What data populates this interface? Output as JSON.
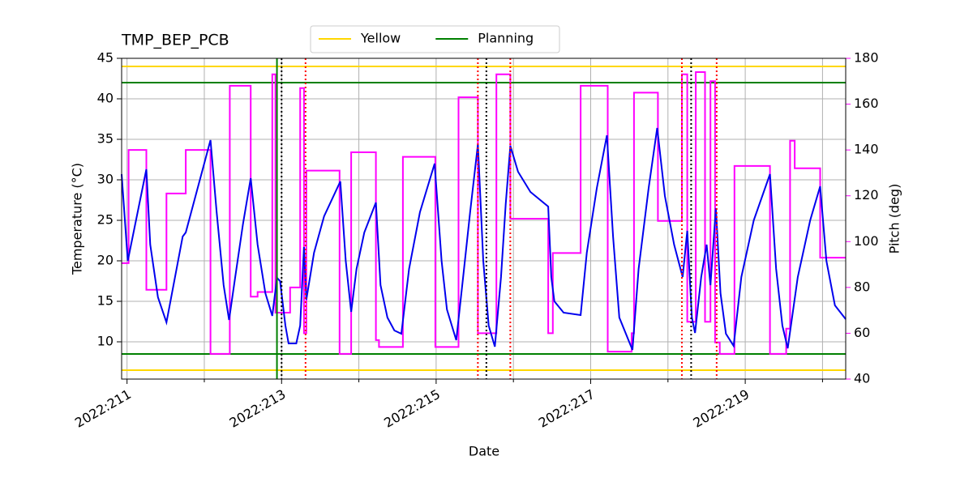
{
  "chart_data": {
    "type": "line",
    "title": "TMP_BEP_PCB",
    "xlabel": "Date",
    "ylabel": "Temperature (°C)",
    "y2label": "Pitch (deg)",
    "y2color": "#ff00ff",
    "xlim": [
      210.93,
      220.3
    ],
    "ylim": [
      5.4,
      45
    ],
    "y2lim": [
      40,
      180
    ],
    "xticks": [
      {
        "value": 211,
        "label": "2022:211"
      },
      {
        "value": 213,
        "label": "2022:213"
      },
      {
        "value": 215,
        "label": "2022:215"
      },
      {
        "value": 217,
        "label": "2022:217"
      },
      {
        "value": 219,
        "label": "2022:219"
      }
    ],
    "x_minor_ticks": [
      212,
      214,
      216,
      218,
      220
    ],
    "yticks": [
      10,
      15,
      20,
      25,
      30,
      35,
      40,
      45
    ],
    "y2ticks": [
      40,
      60,
      80,
      100,
      120,
      140,
      160,
      180
    ],
    "grid": true,
    "limit_lines": [
      {
        "name": "Yellow",
        "color": "#ffd700",
        "values": [
          6.5,
          44
        ]
      },
      {
        "name": "Planning",
        "color": "#008000",
        "values": [
          8.5,
          42
        ]
      }
    ],
    "vlines": [
      {
        "color": "#008000",
        "dotted": false,
        "x": [
          212.94
        ]
      },
      {
        "color": "#000000",
        "dotted": true,
        "x": [
          213.0,
          215.65,
          218.3
        ]
      },
      {
        "color": "#ff0000",
        "dotted": true,
        "x": [
          213.31,
          215.54,
          215.96,
          218.18,
          218.63
        ]
      }
    ],
    "series": [
      {
        "color": "#0000ee",
        "x": [
          210.93,
          211.01,
          211.25,
          211.3,
          211.4,
          211.51,
          211.72,
          211.76,
          212.08,
          212.16,
          212.25,
          212.32,
          212.4,
          212.5,
          212.6,
          212.69,
          212.79,
          212.88,
          212.94,
          212.98,
          213.05,
          213.09,
          213.19,
          213.24,
          213.29,
          213.32,
          213.42,
          213.55,
          213.76,
          213.83,
          213.9,
          213.97,
          214.07,
          214.22,
          214.28,
          214.37,
          214.46,
          214.55,
          214.65,
          214.79,
          214.98,
          215.07,
          215.14,
          215.26,
          215.35,
          215.44,
          215.54,
          215.61,
          215.68,
          215.76,
          215.84,
          215.9,
          215.96,
          216.06,
          216.22,
          216.45,
          216.49,
          216.53,
          216.65,
          216.87,
          216.95,
          217.08,
          217.21,
          217.29,
          217.37,
          217.54,
          217.62,
          217.75,
          217.86,
          217.96,
          218.08,
          218.19,
          218.25,
          218.31,
          218.35,
          218.43,
          218.5,
          218.55,
          218.62,
          218.68,
          218.75,
          218.85,
          218.95,
          219.11,
          219.32,
          219.4,
          219.48,
          219.55,
          219.68,
          219.84,
          219.97,
          220.05,
          220.16,
          220.3
        ],
        "values": [
          30.7,
          20,
          31.3,
          22,
          15.5,
          12.4,
          23,
          23.5,
          34.9,
          26,
          17,
          12.7,
          18,
          24.5,
          30.2,
          22,
          16,
          13.2,
          17.9,
          17.5,
          12,
          9.8,
          9.8,
          12,
          21.7,
          15.2,
          21,
          25.5,
          29.8,
          20,
          13.7,
          19,
          23.5,
          27.2,
          17,
          13,
          11.4,
          11,
          19,
          26,
          32,
          20,
          14,
          10.2,
          18,
          26,
          34.4,
          20,
          12,
          9.4,
          18,
          27,
          34.2,
          31,
          28.5,
          26.7,
          18,
          15,
          13.6,
          13.3,
          21,
          29,
          35.5,
          23,
          13,
          9,
          19,
          29,
          36.4,
          28,
          22,
          18,
          23.7,
          13,
          11.1,
          18,
          22,
          17,
          26.5,
          16,
          11,
          9.5,
          18,
          25,
          30.7,
          19,
          12,
          9.2,
          18,
          25,
          29.2,
          20,
          14.5,
          12.8
        ]
      },
      {
        "color": "#ff00ff",
        "axis": "y2",
        "x": [
          210.93,
          211.02,
          211.02,
          211.25,
          211.25,
          211.51,
          211.51,
          211.76,
          211.76,
          212.08,
          212.08,
          212.33,
          212.33,
          212.6,
          212.6,
          212.69,
          212.69,
          212.88,
          212.88,
          212.92,
          212.92,
          213.11,
          213.11,
          213.24,
          213.24,
          213.29,
          213.29,
          213.32,
          213.32,
          213.75,
          213.75,
          213.9,
          213.9,
          214.22,
          214.22,
          214.26,
          214.26,
          214.57,
          214.57,
          214.99,
          214.99,
          215.29,
          215.29,
          215.54,
          215.54,
          215.78,
          215.78,
          215.96,
          215.96,
          216.45,
          216.45,
          216.51,
          216.51,
          216.87,
          216.87,
          217.22,
          217.22,
          217.53,
          217.53,
          217.56,
          217.56,
          217.87,
          217.87,
          218.18,
          218.18,
          218.25,
          218.25,
          218.36,
          218.36,
          218.48,
          218.48,
          218.55,
          218.55,
          218.61,
          218.61,
          218.67,
          218.67,
          218.86,
          218.86,
          219.32,
          219.32,
          219.53,
          219.53,
          219.58,
          219.58,
          219.64,
          219.64,
          219.97,
          219.97,
          220.3
        ],
        "values": [
          90.6,
          90.6,
          140,
          140,
          79,
          79,
          121,
          121,
          140,
          140,
          51,
          51,
          168,
          168,
          76,
          76,
          78,
          78,
          173,
          173,
          69,
          69,
          80,
          80,
          167,
          167,
          60,
          60,
          131,
          131,
          51,
          51,
          139,
          139,
          57,
          57,
          54,
          54,
          137,
          137,
          54,
          54,
          163,
          163,
          60,
          60,
          173,
          173,
          110,
          110,
          60,
          60,
          95,
          95,
          168,
          168,
          52,
          52,
          60,
          60,
          165,
          165,
          109,
          109,
          173,
          173,
          65,
          65,
          174,
          174,
          65,
          65,
          170,
          170,
          56,
          56,
          51,
          51,
          133,
          133,
          51,
          51,
          62,
          62,
          144,
          144,
          132,
          132,
          93,
          93
        ]
      }
    ]
  }
}
